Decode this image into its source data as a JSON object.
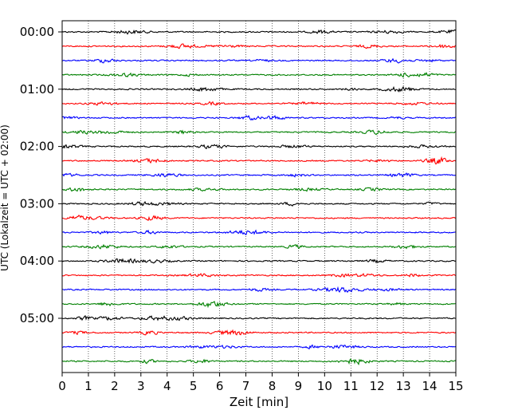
{
  "chart_data": {
    "type": "line",
    "title": "",
    "xlabel": "Zeit  [min]",
    "ylabel": "UTC (Lokalzeit = UTC + 02:00)",
    "xlim": [
      0,
      15
    ],
    "x_ticks": [
      "0",
      "1",
      "2",
      "3",
      "4",
      "5",
      "6",
      "7",
      "8",
      "9",
      "10",
      "11",
      "12",
      "13",
      "14",
      "15"
    ],
    "y_ticks": [
      {
        "label": "00:00",
        "trace": 0
      },
      {
        "label": "01:00",
        "trace": 4
      },
      {
        "label": "02:00",
        "trace": 8
      },
      {
        "label": "03:00",
        "trace": 12
      },
      {
        "label": "04:00",
        "trace": 16
      },
      {
        "label": "05:00",
        "trace": 20
      }
    ],
    "trace_interval_min": 15,
    "trace_count": 24,
    "trace_colors": [
      "#000000",
      "#ff0000",
      "#0000ff",
      "#008000"
    ],
    "vertical_grid": "dotted"
  }
}
